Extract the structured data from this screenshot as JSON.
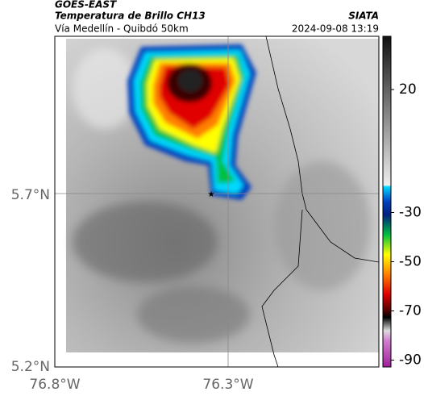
{
  "header": {
    "source": "GOES-EAST",
    "title": "Temperatura de Brillo CH13",
    "agency": "SIATA",
    "route": "Vía Medellín - Quibdó 50km",
    "datetime": "2024-09-08 13:19"
  },
  "map": {
    "lat_labels": [
      "5.7°N",
      "5.2°N"
    ],
    "lon_labels": [
      "76.8°W",
      "76.3°W"
    ]
  },
  "colorbar": {
    "ticks": [
      20,
      -30,
      -50,
      -70,
      -90
    ]
  }
}
